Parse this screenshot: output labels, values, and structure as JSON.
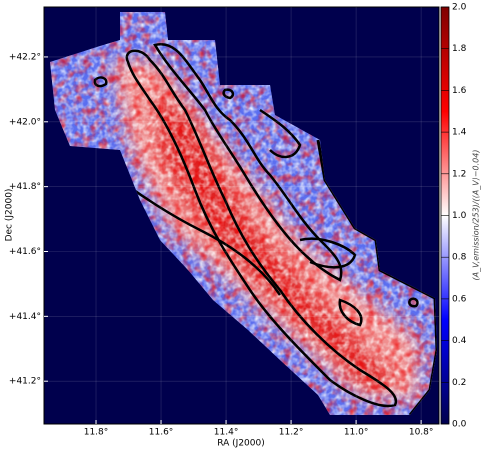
{
  "chart_data": {
    "type": "image",
    "xlabel": "RA (J2000)",
    "ylabel": "Dec (J2000)",
    "xlim": [
      11.96,
      10.745
    ],
    "ylim": [
      41.068,
      42.354
    ],
    "xticks": [
      {
        "value": 11.8,
        "label": "11.8°"
      },
      {
        "value": 11.6,
        "label": "11.6°"
      },
      {
        "value": 11.4,
        "label": "11.4°"
      },
      {
        "value": 11.2,
        "label": "11.2°"
      },
      {
        "value": 11.0,
        "label": "11.0°"
      },
      {
        "value": 10.8,
        "label": "10.8°"
      }
    ],
    "yticks": [
      {
        "value": 41.2,
        "label": "+41.2°"
      },
      {
        "value": 41.4,
        "label": "+41.4°"
      },
      {
        "value": 41.6,
        "label": "+41.6°"
      },
      {
        "value": 41.8,
        "label": "+41.8°"
      },
      {
        "value": 42.0,
        "label": "+42.0°"
      },
      {
        "value": 42.2,
        "label": "+42.2°"
      }
    ],
    "grid": true,
    "colorbar": {
      "label": "(A_V,emission/253)/(⟨A_V⟩−0.04)",
      "lim": [
        0,
        2
      ],
      "ticks": [
        {
          "value": 0,
          "label": "0.0"
        },
        0.2,
        0.4,
        0.6,
        0.8,
        {
          "value": 1,
          "label": "1.0"
        },
        1.2,
        1.4,
        1.6,
        1.8,
        {
          "value": 2,
          "label": "2.0"
        }
      ],
      "colors": [
        "#00004d",
        "#0000ff",
        "#ffffff",
        "#ff0000",
        "#800000"
      ]
    }
  }
}
